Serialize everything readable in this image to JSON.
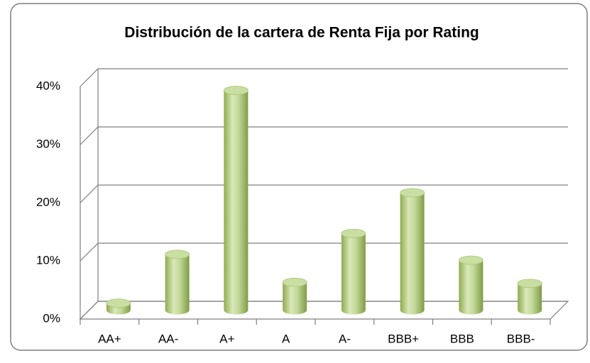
{
  "chart_data": {
    "type": "bar",
    "title": "Distribución de la cartera de Renta Fija por Rating",
    "categories": [
      "AA+",
      "AA-",
      "A+",
      "A",
      "A-",
      "BBB+",
      "BBB",
      "BBB-"
    ],
    "values": [
      1.2,
      9.6,
      37.8,
      4.8,
      13.2,
      20.2,
      8.6,
      4.6
    ],
    "color": "#9bbb59",
    "ylim": [
      0,
      40
    ],
    "yticks": [
      {
        "value": 0,
        "label": "0%"
      },
      {
        "value": 10,
        "label": "10%"
      },
      {
        "value": 20,
        "label": "20%"
      },
      {
        "value": 30,
        "label": "30%"
      },
      {
        "value": 40,
        "label": "40%"
      }
    ],
    "grid": true
  }
}
